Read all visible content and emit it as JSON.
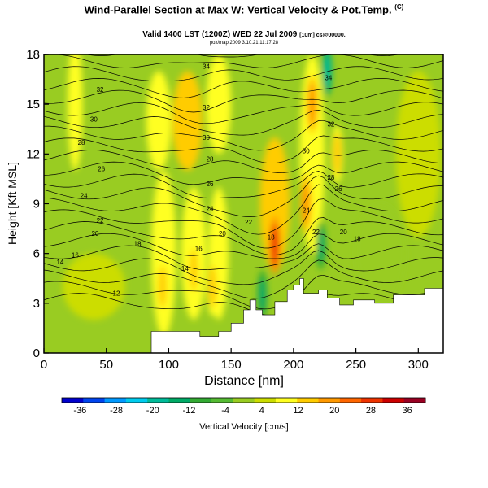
{
  "header": {
    "title": "Wind-Parallel Section at Max W: Vertical Velocity & Pot.Temp.",
    "title_tag": "(C)",
    "valid": "Valid 1400 LST (1200Z) WED 22 Jul 2009",
    "valid_note": "[10m] cs@00000.",
    "program": "pox/map  2009 3.10.21 11:17:28"
  },
  "colors": {
    "background": "#ffffff",
    "terrain": "#ffffff",
    "isentropes": "#000000",
    "colorbar": [
      "#0000cc",
      "#0044ee",
      "#0099ff",
      "#00ccee",
      "#00bb99",
      "#00aa66",
      "#33aa33",
      "#55bb33",
      "#99cc22",
      "#ccdd00",
      "#ffff22",
      "#ffcc00",
      "#ff9900",
      "#ff6600",
      "#ee3300",
      "#cc0000",
      "#990022"
    ]
  },
  "chart_data": {
    "type": "heatmap",
    "xlabel": "Distance [nm]",
    "ylabel": "Height [Kft MSL]",
    "xlim": [
      0,
      320
    ],
    "ylim": [
      0,
      18
    ],
    "xticks": [
      0,
      50,
      100,
      150,
      200,
      250,
      300
    ],
    "yticks": [
      0,
      3,
      6,
      9,
      12,
      15,
      18
    ],
    "colorbar": {
      "label": "Vertical Velocity [cm/s]",
      "range": [
        -40,
        40
      ],
      "tick_values": [
        -36,
        -28,
        -20,
        -12,
        -4,
        4,
        12,
        20,
        28,
        36
      ]
    },
    "updraft_cores_cm_s": [
      {
        "x": 95,
        "z": 4,
        "w": 14
      },
      {
        "x": 120,
        "z": 5,
        "w": 12
      },
      {
        "x": 135,
        "z": 4,
        "w": 12
      },
      {
        "x": 185,
        "z": 6.5,
        "w": 28
      },
      {
        "x": 210,
        "z": 9,
        "w": 20
      },
      {
        "x": 215,
        "z": 15,
        "w": 20
      },
      {
        "x": 235,
        "z": 12,
        "w": 12
      }
    ],
    "downdraft_cores_cm_s": [
      {
        "x": 175,
        "z": 3.5,
        "w": -16
      },
      {
        "x": 227,
        "z": 17,
        "w": -20
      },
      {
        "x": 222,
        "z": 6.5,
        "w": -12
      }
    ],
    "terrain_profile": {
      "x": [
        0,
        86,
        86,
        94,
        94,
        125,
        125,
        140,
        140,
        150,
        150,
        160,
        160,
        165,
        165,
        170,
        170,
        175,
        175,
        185,
        185,
        195,
        195,
        200,
        200,
        205,
        205,
        208,
        208,
        220,
        220,
        227,
        227,
        232,
        232,
        237,
        237,
        248,
        248,
        265,
        265,
        280,
        280,
        305,
        305,
        320
      ],
      "z": [
        0,
        0,
        1.3,
        1.3,
        1.3,
        1.3,
        1.0,
        1.0,
        1.3,
        1.3,
        1.8,
        1.8,
        2.6,
        2.6,
        3.2,
        3.2,
        2.6,
        2.6,
        2.3,
        2.3,
        3.1,
        3.1,
        3.8,
        3.8,
        4.1,
        4.1,
        4.5,
        4.5,
        3.6,
        3.6,
        3.8,
        3.8,
        3.3,
        3.3,
        3.3,
        3.3,
        2.9,
        2.9,
        3.2,
        3.2,
        3.0,
        3.0,
        3.5,
        3.5,
        3.9,
        3.9
      ]
    },
    "isentrope_labels": [
      {
        "x": 130,
        "z": 17.3,
        "label": "34"
      },
      {
        "x": 228,
        "z": 16.6,
        "label": "34"
      },
      {
        "x": 45,
        "z": 15.9,
        "label": "32"
      },
      {
        "x": 130,
        "z": 14.8,
        "label": "32"
      },
      {
        "x": 230,
        "z": 13.8,
        "label": "32"
      },
      {
        "x": 40,
        "z": 14.1,
        "label": "30"
      },
      {
        "x": 130,
        "z": 13.0,
        "label": "30"
      },
      {
        "x": 210,
        "z": 12.2,
        "label": "30"
      },
      {
        "x": 30,
        "z": 12.7,
        "label": "28"
      },
      {
        "x": 133,
        "z": 11.7,
        "label": "28"
      },
      {
        "x": 230,
        "z": 10.6,
        "label": "28"
      },
      {
        "x": 46,
        "z": 11.1,
        "label": "26"
      },
      {
        "x": 133,
        "z": 10.2,
        "label": "26"
      },
      {
        "x": 236,
        "z": 9.9,
        "label": "26"
      },
      {
        "x": 32,
        "z": 9.5,
        "label": "24"
      },
      {
        "x": 133,
        "z": 8.7,
        "label": "24"
      },
      {
        "x": 210,
        "z": 8.6,
        "label": "24"
      },
      {
        "x": 45,
        "z": 8.0,
        "label": "22"
      },
      {
        "x": 164,
        "z": 7.9,
        "label": "22"
      },
      {
        "x": 218,
        "z": 7.3,
        "label": "22"
      },
      {
        "x": 41,
        "z": 7.2,
        "label": "20"
      },
      {
        "x": 143,
        "z": 7.2,
        "label": "20"
      },
      {
        "x": 240,
        "z": 7.3,
        "label": "20"
      },
      {
        "x": 75,
        "z": 6.6,
        "label": "18"
      },
      {
        "x": 182,
        "z": 7.0,
        "label": "18"
      },
      {
        "x": 251,
        "z": 6.9,
        "label": "18"
      },
      {
        "x": 25,
        "z": 5.9,
        "label": "16"
      },
      {
        "x": 124,
        "z": 6.3,
        "label": "16"
      },
      {
        "x": 13,
        "z": 5.5,
        "label": "14"
      },
      {
        "x": 113,
        "z": 5.1,
        "label": "14"
      },
      {
        "x": 58,
        "z": 3.6,
        "label": "12"
      }
    ]
  }
}
